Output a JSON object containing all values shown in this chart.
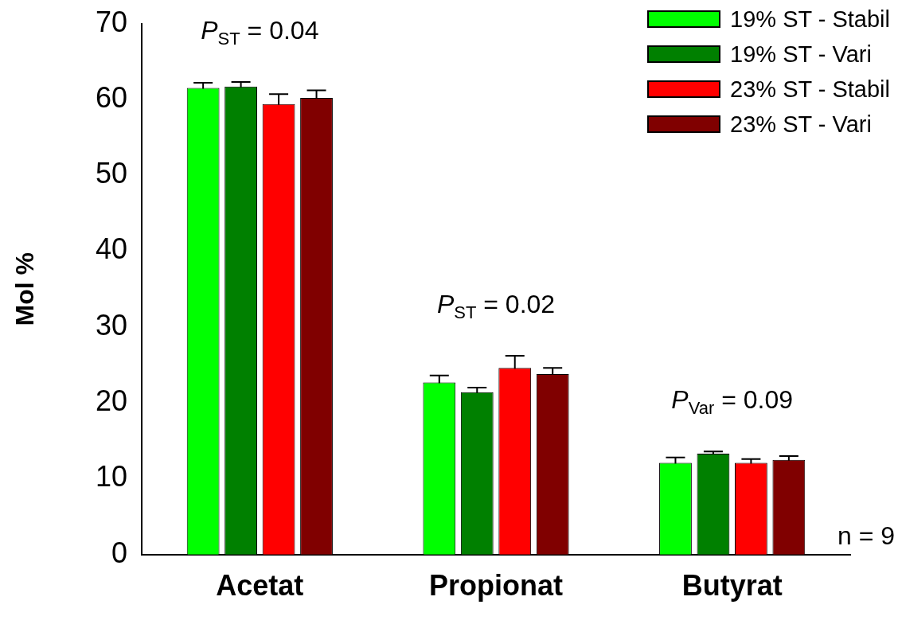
{
  "chart_data": {
    "type": "bar",
    "ylabel": "Mol %",
    "categories": [
      "Acetat",
      "Propionat",
      "Butyrat"
    ],
    "series": [
      {
        "name": "19% ST - Stabil",
        "color": "#00ff00",
        "values": [
          61.5,
          22.7,
          12.1
        ],
        "errors": [
          0.7,
          0.9,
          0.7
        ]
      },
      {
        "name": "19% ST - Vari",
        "color": "#008000",
        "values": [
          61.7,
          21.4,
          13.3
        ],
        "errors": [
          0.6,
          0.6,
          0.3
        ]
      },
      {
        "name": "23% ST - Stabil",
        "color": "#ff0000",
        "values": [
          59.4,
          24.6,
          12.1
        ],
        "errors": [
          1.3,
          1.6,
          0.5
        ]
      },
      {
        "name": "23% ST - Vari",
        "color": "#800000",
        "values": [
          60.2,
          23.8,
          12.5
        ],
        "errors": [
          1.0,
          0.8,
          0.5
        ]
      }
    ],
    "ylim": [
      0,
      70
    ],
    "yticks": [
      0,
      10,
      20,
      30,
      40,
      50,
      60,
      70
    ],
    "grid": false,
    "legend": "top right",
    "annotations": [
      "P$_{ST}$ = 0.04",
      "P$_{ST}$ = 0.02",
      "P$_{Var}$ = 0.09",
      "n = 9"
    ]
  }
}
